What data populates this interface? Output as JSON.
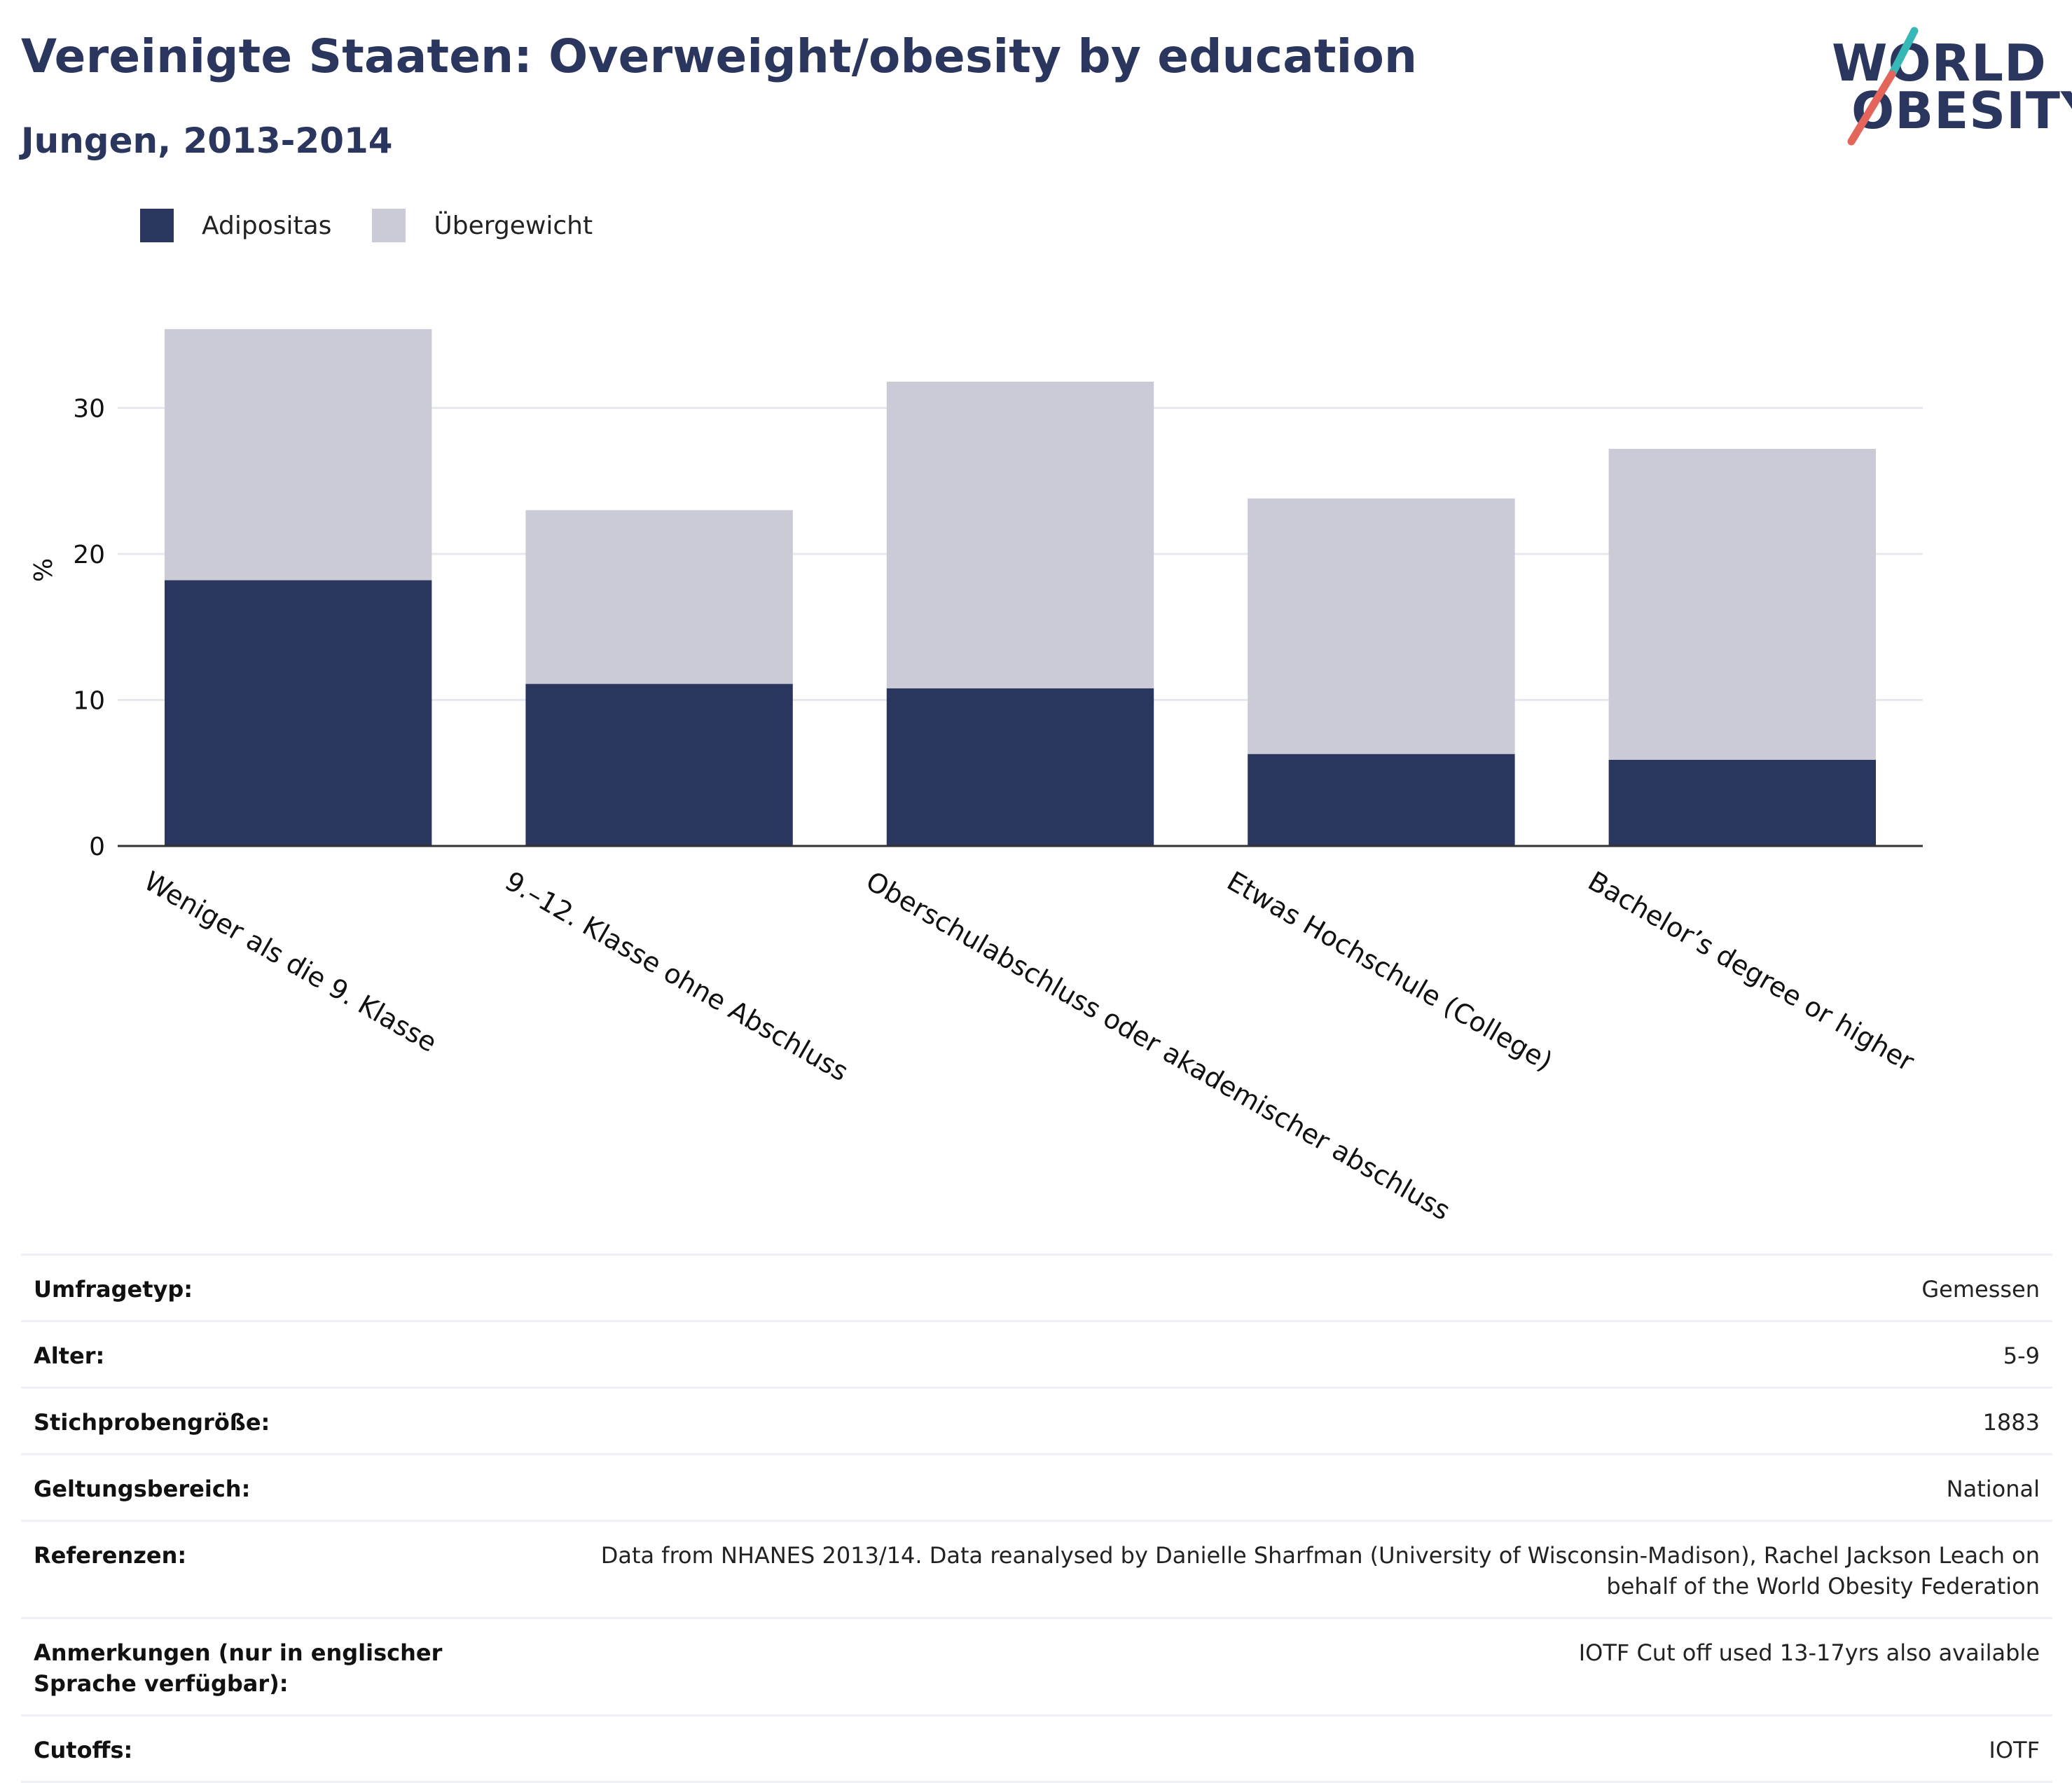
{
  "header": {
    "title": "Vereinigte Staaten: Overweight/obesity by education",
    "subtitle": "Jungen, 2013-2014"
  },
  "logo": {
    "line1": "WORLD",
    "line2": "OBESITY"
  },
  "colors": {
    "obesity": "#2b365f",
    "overweight": "#cacbd6",
    "brand": "#2b365f",
    "accent_red": "#e4655a",
    "accent_teal": "#37b8b7"
  },
  "chart_data": {
    "type": "bar",
    "stacked": true,
    "title": "",
    "xlabel": "",
    "ylabel": "%",
    "ylim": [
      0,
      37
    ],
    "yticks": [
      0,
      10,
      20,
      30
    ],
    "grid": true,
    "legend_position": "top-left",
    "categories": [
      "Weniger als die 9. Klasse",
      "9.–12. Klasse ohne Abschluss",
      "Oberschulabschluss oder akademischer abschluss",
      "Etwas Hochschule (College)",
      "Bachelor’s degree or higher"
    ],
    "series": [
      {
        "name": "Adipositas",
        "values": [
          18.2,
          11.1,
          10.8,
          6.3,
          5.9
        ]
      },
      {
        "name": "Übergewicht",
        "values": [
          17.2,
          11.9,
          21.0,
          17.5,
          21.3
        ]
      }
    ]
  },
  "info": [
    {
      "label": "Umfragetyp:",
      "value": "Gemessen"
    },
    {
      "label": "Alter:",
      "value": "5-9"
    },
    {
      "label": "Stichprobengröße:",
      "value": "1883"
    },
    {
      "label": "Geltungsbereich:",
      "value": "National"
    },
    {
      "label": "Referenzen:",
      "value": "Data from NHANES 2013/14. Data reanalysed by Danielle Sharfman (University of Wisconsin-Madison), Rachel Jackson Leach on behalf of the World Obesity Federation"
    },
    {
      "label": "Anmerkungen (nur in englischer Sprache verfügbar):",
      "value": "IOTF Cut off used 13-17yrs also available"
    },
    {
      "label": "Cutoffs:",
      "value": "IOTF"
    }
  ]
}
